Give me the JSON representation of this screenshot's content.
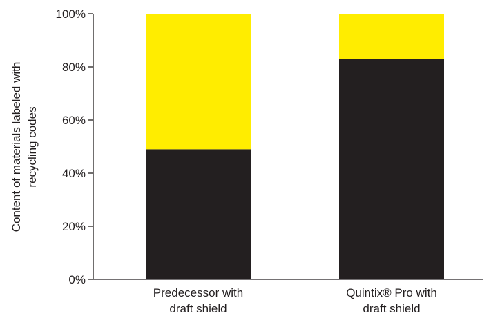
{
  "chart_data": {
    "type": "bar",
    "stacked": true,
    "categories": [
      [
        "Predecessor with",
        "draft shield"
      ],
      [
        "Quintix® Pro with",
        "draft shield"
      ]
    ],
    "series": [
      {
        "values": [
          49,
          83
        ],
        "color": "#231f20"
      },
      {
        "values": [
          51,
          17
        ],
        "color": "#ffed00"
      }
    ],
    "ylabel": [
      "Content of materials labeled with",
      "recycling codes"
    ],
    "ylim": [
      0,
      100
    ],
    "y_ticks": [
      {
        "value": 0,
        "label": "0%"
      },
      {
        "value": 20,
        "label": "20%"
      },
      {
        "value": 40,
        "label": "40%"
      },
      {
        "value": 60,
        "label": "60%"
      },
      {
        "value": 80,
        "label": "80%"
      },
      {
        "value": 100,
        "label": "100%"
      }
    ],
    "grid": false,
    "legend": "none"
  }
}
